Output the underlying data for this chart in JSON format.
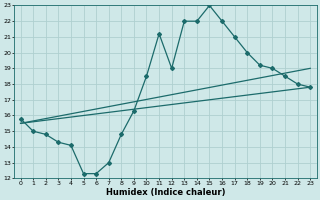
{
  "title": "",
  "xlabel": "Humidex (Indice chaleur)",
  "ylabel": "",
  "xlim": [
    -0.5,
    23.5
  ],
  "ylim": [
    12,
    23
  ],
  "xticks": [
    0,
    1,
    2,
    3,
    4,
    5,
    6,
    7,
    8,
    9,
    10,
    11,
    12,
    13,
    14,
    15,
    16,
    17,
    18,
    19,
    20,
    21,
    22,
    23
  ],
  "yticks": [
    12,
    13,
    14,
    15,
    16,
    17,
    18,
    19,
    20,
    21,
    22,
    23
  ],
  "background_color": "#cfe8e8",
  "grid_color": "#afd0d0",
  "line_color": "#1c6b6b",
  "line1_x": [
    0,
    1,
    2,
    3,
    4,
    5,
    6,
    7,
    8,
    9,
    10,
    11,
    12,
    13,
    14,
    15,
    16,
    17,
    18,
    19,
    20,
    21,
    22,
    23
  ],
  "line1_y": [
    15.8,
    15.0,
    14.8,
    14.3,
    14.1,
    12.3,
    12.3,
    13.0,
    14.8,
    16.3,
    18.5,
    21.2,
    19.0,
    22.0,
    22.0,
    23.0,
    22.0,
    21.0,
    20.0,
    19.2,
    19.0,
    18.5,
    18.0,
    17.8
  ],
  "line2_x": [
    0,
    23
  ],
  "line2_y": [
    15.5,
    17.8
  ],
  "line3_x": [
    0,
    23
  ],
  "line3_y": [
    15.5,
    19.0
  ],
  "tick_fontsize": 4.5,
  "xlabel_fontsize": 6.0,
  "marker_size": 2.0,
  "linewidth": 0.9
}
